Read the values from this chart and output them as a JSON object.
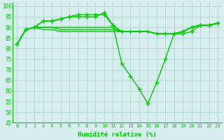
{
  "xlabel": "Humidité relative (%)",
  "x": [
    0,
    1,
    2,
    3,
    4,
    5,
    6,
    7,
    8,
    9,
    10,
    11,
    12,
    13,
    14,
    15,
    16,
    17,
    18,
    19,
    20,
    21,
    22,
    23
  ],
  "line_dip": [
    82,
    89,
    90,
    93,
    93,
    94,
    95,
    95,
    95,
    95,
    97,
    91,
    73,
    67,
    61,
    54,
    64,
    75,
    87,
    87,
    88,
    91,
    91,
    92
  ],
  "line_upper": [
    82,
    89,
    90,
    93,
    93,
    94,
    95,
    96,
    96,
    96,
    96,
    91,
    88,
    88,
    88,
    88,
    87,
    87,
    87,
    88,
    90,
    91,
    91,
    92
  ],
  "line_mid1": [
    82,
    89,
    90,
    90,
    90,
    90,
    90,
    90,
    90,
    90,
    90,
    90,
    88,
    88,
    88,
    88,
    87,
    87,
    87,
    88,
    90,
    91,
    91,
    92
  ],
  "line_mid2": [
    82,
    89,
    90,
    90,
    90,
    89,
    89,
    89,
    89,
    89,
    89,
    89,
    88,
    88,
    88,
    88,
    87,
    87,
    87,
    88,
    90,
    91,
    91,
    92
  ],
  "line_flat": [
    82,
    89,
    90,
    89,
    89,
    88,
    88,
    88,
    88,
    88,
    88,
    88,
    88,
    88,
    88,
    88,
    87,
    87,
    87,
    88,
    90,
    91,
    91,
    92
  ],
  "ylim": [
    45,
    102
  ],
  "yticks": [
    45,
    50,
    55,
    60,
    65,
    70,
    75,
    80,
    85,
    90,
    95,
    100
  ],
  "line_color": "#00CC00",
  "bg_color": "#D6EEEE",
  "grid_color": "#AACCCC",
  "marker": "+",
  "markersize": 4,
  "linewidth": 1.0
}
